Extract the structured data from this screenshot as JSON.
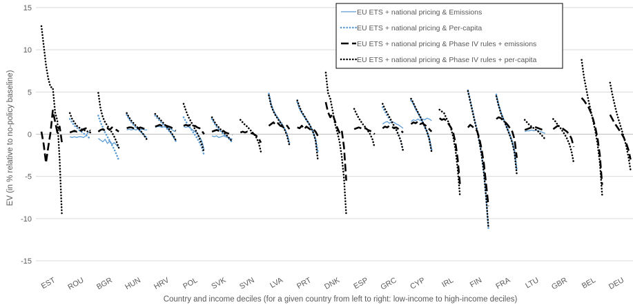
{
  "chart_data": {
    "type": "line",
    "title": "",
    "xlabel": "Country and income deciles (for a given country from left to right: low-income to high-income deciles)",
    "ylabel": "EV (in % relative to no-policy baseline)",
    "ylim": [
      -15,
      15
    ],
    "yticks": [
      15,
      10,
      5,
      0,
      -5,
      -10,
      -15
    ],
    "grid": "horizontal",
    "legend_position": "top-right",
    "categories": [
      "EST",
      "ROU",
      "BGR",
      "HUN",
      "HRV",
      "POL",
      "SVK",
      "SVN",
      "LVA",
      "PRT",
      "DNK",
      "ESP",
      "GRC",
      "CYP",
      "IRL",
      "FIN",
      "FRA",
      "LTU",
      "GBR",
      "BEL",
      "DEU"
    ],
    "series": [
      {
        "name": "EU ETS + national pricing & Emissions",
        "color": "#5b9bd5",
        "style": "solid",
        "values": [
          [
            null,
            null,
            null,
            null,
            null,
            null,
            null,
            null,
            null,
            null
          ],
          [
            -0.3,
            -0.4,
            -0.3,
            -0.4,
            -0.3,
            -0.3,
            -0.4,
            -0.2,
            0.2,
            0.3
          ],
          [
            -0.5,
            -0.7,
            -0.9,
            -0.6,
            -1.1,
            -0.8,
            -1.2,
            -1.0,
            -1.3,
            -1.6
          ],
          [
            0.5,
            0.6,
            0.5,
            0.6,
            0.5,
            0.6,
            0.5,
            0.6,
            0.5,
            0.5
          ],
          [
            0.8,
            0.9,
            0.9,
            0.8,
            0.9,
            0.8,
            0.7,
            0.6,
            0.4,
            0.3
          ],
          [
            0.9,
            0.8,
            0.9,
            0.7,
            0.5,
            0.3,
            0.1,
            -0.3,
            -0.8,
            -1.8
          ],
          [
            -0.2,
            -0.3,
            -0.2,
            -0.4,
            -0.3,
            -0.2,
            -0.3,
            -0.4,
            -0.5,
            -0.6
          ],
          [
            null,
            null,
            null,
            null,
            null,
            null,
            null,
            null,
            null,
            null
          ],
          [
            null,
            null,
            null,
            null,
            null,
            null,
            null,
            null,
            null,
            null
          ],
          [
            null,
            null,
            null,
            null,
            null,
            null,
            null,
            null,
            null,
            null
          ],
          [
            null,
            null,
            null,
            null,
            null,
            null,
            null,
            null,
            null,
            null
          ],
          [
            null,
            null,
            null,
            null,
            null,
            null,
            null,
            null,
            null,
            null
          ],
          [
            1.2,
            1.4,
            1.5,
            1.3,
            1.5,
            1.4,
            1.2,
            1.1,
            0.9,
            0.7
          ],
          [
            1.5,
            1.7,
            1.6,
            1.8,
            1.6,
            1.8,
            1.7,
            1.9,
            1.8,
            1.6
          ],
          [
            null,
            null,
            null,
            null,
            null,
            null,
            null,
            null,
            null,
            null
          ],
          [
            null,
            null,
            null,
            null,
            null,
            null,
            null,
            null,
            null,
            null
          ],
          [
            null,
            null,
            null,
            null,
            null,
            null,
            null,
            null,
            null,
            null
          ],
          [
            0.3,
            0.4,
            0.4,
            0.5,
            0.4,
            0.5,
            0.4,
            0.3,
            0.2,
            0.1
          ],
          [
            null,
            null,
            null,
            null,
            null,
            null,
            null,
            null,
            null,
            null
          ],
          [
            null,
            null,
            null,
            null,
            null,
            null,
            null,
            null,
            null,
            null
          ],
          [
            null,
            null,
            null,
            null,
            null,
            null,
            null,
            null,
            null,
            null
          ]
        ]
      },
      {
        "name": "EU ETS + national pricing & Per-capita",
        "color": "#5b9bd5",
        "style": "dotted",
        "values": [
          [
            null,
            null,
            null,
            null,
            null,
            null,
            null,
            null,
            null,
            null
          ],
          [
            1.8,
            1.4,
            1.0,
            0.8,
            0.5,
            0.3,
            0.1,
            -0.1,
            -0.3,
            -0.6
          ],
          [
            2.2,
            1.4,
            0.8,
            0.2,
            -0.3,
            -0.8,
            -1.3,
            -1.8,
            -2.4,
            -3.1
          ],
          [
            2.3,
            1.8,
            1.4,
            1.1,
            0.8,
            0.6,
            0.3,
            0.1,
            -0.2,
            -0.5
          ],
          [
            2.2,
            1.9,
            1.6,
            1.3,
            1.0,
            0.7,
            0.4,
            0.1,
            -0.3,
            -0.8
          ],
          [
            2.0,
            1.5,
            1.1,
            0.7,
            0.3,
            -0.1,
            -0.5,
            -1.0,
            -1.6,
            -2.5
          ],
          [
            1.8,
            1.3,
            0.9,
            0.6,
            0.3,
            0.0,
            -0.2,
            -0.4,
            -0.7,
            -1.0
          ],
          [
            null,
            null,
            null,
            null,
            null,
            null,
            null,
            null,
            null,
            null
          ],
          [
            4.8,
            3.5,
            2.8,
            2.3,
            1.9,
            1.5,
            1.1,
            0.6,
            0.0,
            -1.0
          ],
          [
            3.8,
            3.0,
            2.5,
            2.1,
            1.7,
            1.3,
            0.8,
            0.2,
            -0.6,
            -2.0
          ],
          [
            null,
            null,
            null,
            null,
            null,
            null,
            null,
            null,
            null,
            null
          ],
          [
            null,
            null,
            null,
            null,
            null,
            null,
            null,
            null,
            null,
            null
          ],
          [
            3.2,
            2.7,
            2.2,
            1.8,
            1.4,
            1.0,
            0.5,
            -0.1,
            -0.8,
            -2.0
          ],
          [
            4.0,
            3.6,
            3.0,
            2.5,
            2.0,
            1.5,
            0.9,
            0.3,
            -0.5,
            -1.8
          ],
          [
            null,
            null,
            null,
            null,
            null,
            null,
            null,
            null,
            null,
            null
          ],
          [
            5.2,
            4.0,
            2.8,
            1.6,
            0.5,
            -0.8,
            -2.4,
            -4.5,
            -7.5,
            -11.3
          ],
          [
            4.7,
            3.5,
            2.6,
            1.9,
            1.3,
            0.6,
            -0.1,
            -0.9,
            -2.0,
            -4.2
          ],
          [
            null,
            null,
            null,
            null,
            null,
            null,
            null,
            null,
            null,
            null
          ],
          [
            null,
            null,
            null,
            null,
            null,
            null,
            null,
            null,
            null,
            null
          ],
          [
            null,
            null,
            null,
            null,
            null,
            null,
            null,
            null,
            null,
            null
          ],
          [
            null,
            null,
            null,
            null,
            null,
            null,
            null,
            null,
            null,
            null
          ]
        ]
      },
      {
        "name": "EU ETS + national pricing & Phase IV rules + emissions",
        "color": "#000000",
        "style": "dashed",
        "values": [
          [
            0.3,
            -1.2,
            -3.4,
            -1.5,
            0.2,
            2.8,
            1.5,
            0.2,
            0.9,
            -1.0
          ],
          [
            0.2,
            0.3,
            0.4,
            0.3,
            0.5,
            0.4,
            0.6,
            0.7,
            0.6,
            0.4
          ],
          [
            0.3,
            0.5,
            0.6,
            0.4,
            0.7,
            0.5,
            0.8,
            0.6,
            0.5,
            0.3
          ],
          [
            0.7,
            0.8,
            0.8,
            0.7,
            0.8,
            0.7,
            0.8,
            0.7,
            0.6,
            0.5
          ],
          [
            0.9,
            1.0,
            1.1,
            1.0,
            1.1,
            1.0,
            0.9,
            0.8,
            0.6,
            0.4
          ],
          [
            1.0,
            1.1,
            1.0,
            1.1,
            0.9,
            1.0,
            0.8,
            0.7,
            0.4,
            0.0
          ],
          [
            0.3,
            0.4,
            0.5,
            0.4,
            0.3,
            0.4,
            0.2,
            0.1,
            0.0,
            -0.1
          ],
          [
            0.2,
            0.3,
            0.2,
            0.3,
            0.2,
            0.1,
            0.0,
            -0.2,
            -0.5,
            -1.0
          ],
          [
            1.0,
            1.2,
            1.4,
            1.1,
            1.3,
            1.0,
            0.9,
            1.1,
            1.0,
            0.6
          ],
          [
            0.8,
            0.7,
            1.0,
            0.6,
            0.9,
            0.7,
            0.5,
            0.6,
            0.3,
            -0.2
          ],
          [
            3.8,
            2.6,
            2.0,
            2.4,
            1.6,
            0.8,
            0.2,
            0.5,
            -1.5,
            -5.5
          ],
          [
            0.6,
            0.7,
            0.8,
            0.7,
            0.6,
            0.7,
            0.5,
            0.4,
            0.2,
            0.0
          ],
          [
            0.7,
            0.9,
            0.8,
            1.0,
            0.9,
            0.7,
            0.8,
            0.6,
            0.4,
            0.2
          ],
          [
            1.2,
            1.4,
            1.3,
            1.5,
            1.2,
            1.3,
            1.1,
            0.9,
            0.6,
            0.3
          ],
          [
            1.9,
            1.7,
            1.8,
            1.6,
            1.2,
            0.8,
            0.2,
            -1.0,
            -3.0,
            -6.0
          ],
          [
            0.8,
            1.1,
            0.9,
            0.6,
            0.4,
            -0.5,
            -1.8,
            -3.5,
            -6.0,
            -8.5
          ],
          [
            1.8,
            2.0,
            1.9,
            1.6,
            1.4,
            1.1,
            0.7,
            0.3,
            -0.6,
            -2.8
          ],
          [
            0.5,
            0.6,
            0.7,
            0.8,
            0.9,
            0.8,
            0.7,
            0.6,
            0.5,
            0.4
          ],
          [
            0.6,
            0.8,
            1.0,
            0.9,
            0.7,
            0.5,
            0.3,
            0.0,
            -0.5,
            -1.5
          ],
          [
            4.3,
            4.0,
            3.6,
            3.2,
            2.6,
            1.8,
            0.8,
            -0.5,
            -2.5,
            -6.0
          ],
          [
            2.3,
            1.8,
            1.3,
            0.9,
            0.5,
            0.1,
            -0.4,
            -1.0,
            -1.8,
            -3.0
          ]
        ]
      },
      {
        "name": "EU ETS + national pricing & Phase IV rules + per-capita",
        "color": "#000000",
        "style": "dotted",
        "values": [
          [
            12.8,
            10.5,
            8.2,
            6.6,
            5.6,
            5.5,
            2.6,
            1.6,
            -3.0,
            -9.7
          ],
          [
            2.5,
            1.8,
            1.4,
            1.0,
            0.8,
            0.6,
            0.5,
            0.4,
            0.3,
            0.2
          ],
          [
            4.9,
            3.0,
            2.0,
            1.4,
            1.0,
            0.6,
            0.2,
            -0.3,
            -0.9,
            -1.6
          ],
          [
            2.5,
            2.0,
            1.6,
            1.3,
            1.0,
            0.7,
            0.4,
            0.1,
            -0.3,
            -0.7
          ],
          [
            2.4,
            2.1,
            1.8,
            1.5,
            1.2,
            0.9,
            0.6,
            0.2,
            -0.2,
            -0.7
          ],
          [
            3.6,
            2.8,
            2.1,
            1.6,
            1.1,
            0.6,
            0.1,
            -0.5,
            -1.2,
            -2.2
          ],
          [
            2.0,
            1.5,
            1.1,
            0.8,
            0.5,
            0.2,
            0.0,
            -0.3,
            -0.6,
            -0.9
          ],
          [
            1.7,
            1.4,
            1.1,
            0.9,
            0.6,
            0.3,
            0.0,
            -0.4,
            -1.0,
            -2.1
          ],
          [
            4.6,
            3.4,
            2.7,
            2.2,
            1.8,
            1.4,
            1.0,
            0.5,
            -0.2,
            -1.3
          ],
          [
            4.0,
            3.2,
            2.6,
            2.2,
            1.7,
            1.3,
            0.8,
            0.2,
            -0.7,
            -3.0
          ],
          [
            7.3,
            4.9,
            4.2,
            2.8,
            1.3,
            0.3,
            -0.8,
            -2.6,
            -5.2,
            -9.6
          ],
          [
            3.0,
            2.4,
            1.9,
            1.5,
            1.1,
            0.8,
            0.4,
            0.0,
            -0.6,
            -1.6
          ],
          [
            3.6,
            3.0,
            2.5,
            2.0,
            1.5,
            1.0,
            0.5,
            -0.1,
            -0.8,
            -2.0
          ],
          [
            4.2,
            3.7,
            3.1,
            2.6,
            2.1,
            1.5,
            0.9,
            0.3,
            -0.6,
            -2.1
          ],
          [
            2.9,
            2.7,
            2.5,
            1.9,
            1.4,
            0.7,
            -0.3,
            -1.8,
            -4.2,
            -7.4
          ],
          [
            5.1,
            3.9,
            2.7,
            1.5,
            0.4,
            -0.9,
            -2.5,
            -4.6,
            -7.6,
            -11.1
          ],
          [
            4.5,
            3.4,
            2.5,
            1.8,
            1.2,
            0.5,
            -0.2,
            -1.0,
            -2.2,
            -4.8
          ],
          [
            1.7,
            1.4,
            1.1,
            0.9,
            0.7,
            0.5,
            0.3,
            0.0,
            -0.3,
            -0.6
          ],
          [
            1.8,
            1.5,
            1.1,
            0.8,
            0.4,
            0.0,
            -0.5,
            -1.1,
            -2.0,
            -3.4
          ],
          [
            8.8,
            6.8,
            5.4,
            4.0,
            2.8,
            1.6,
            0.4,
            -1.2,
            -3.4,
            -7.2
          ],
          [
            6.1,
            4.7,
            3.5,
            2.4,
            1.5,
            0.6,
            -0.3,
            -1.3,
            -2.6,
            -4.3
          ]
        ]
      }
    ]
  }
}
